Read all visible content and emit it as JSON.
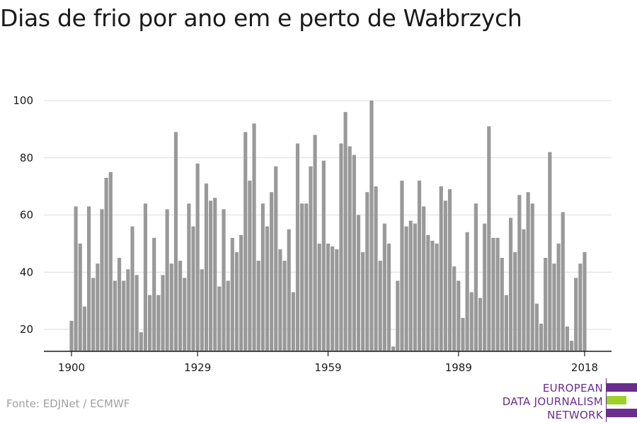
{
  "chart_data": {
    "type": "bar",
    "title": "Dias de frio por ano em e perto de Wałbrzych",
    "xlabel": "",
    "ylabel": "",
    "x_start": 1900,
    "x_end": 2018,
    "x_ticks": [
      1900,
      1929,
      1959,
      1989,
      2018
    ],
    "y_ticks": [
      20,
      40,
      60,
      80,
      100
    ],
    "ylim": [
      12,
      100
    ],
    "grid": "horizontal",
    "bar_color": "#999999",
    "values": [
      23,
      63,
      50,
      28,
      63,
      38,
      43,
      62,
      73,
      75,
      37,
      45,
      37,
      41,
      56,
      39,
      19,
      64,
      32,
      52,
      32,
      39,
      62,
      43,
      89,
      44,
      38,
      64,
      56,
      78,
      41,
      71,
      65,
      66,
      35,
      62,
      37,
      52,
      47,
      53,
      89,
      72,
      92,
      44,
      64,
      56,
      68,
      77,
      48,
      44,
      55,
      33,
      85,
      64,
      64,
      77,
      88,
      50,
      79,
      50,
      49,
      48,
      85,
      96,
      84,
      81,
      60,
      47,
      68,
      100,
      70,
      44,
      57,
      50,
      14,
      37,
      72,
      56,
      58,
      57,
      72,
      63,
      53,
      51,
      50,
      70,
      65,
      69,
      42,
      37,
      24,
      54,
      33,
      64,
      31,
      57,
      91,
      52,
      52,
      45,
      32,
      59,
      47,
      67,
      55,
      68,
      64,
      29,
      22,
      45,
      82,
      43,
      50,
      61,
      21,
      16,
      38,
      43,
      47
    ]
  },
  "source": "Fonte: EDJNet / ECMWF",
  "logo": {
    "lines": [
      "EUROPEAN",
      "DATA JOURNALISM",
      "NETWORK"
    ],
    "purple": "#6a2d8e",
    "green": "#9bd12a"
  }
}
